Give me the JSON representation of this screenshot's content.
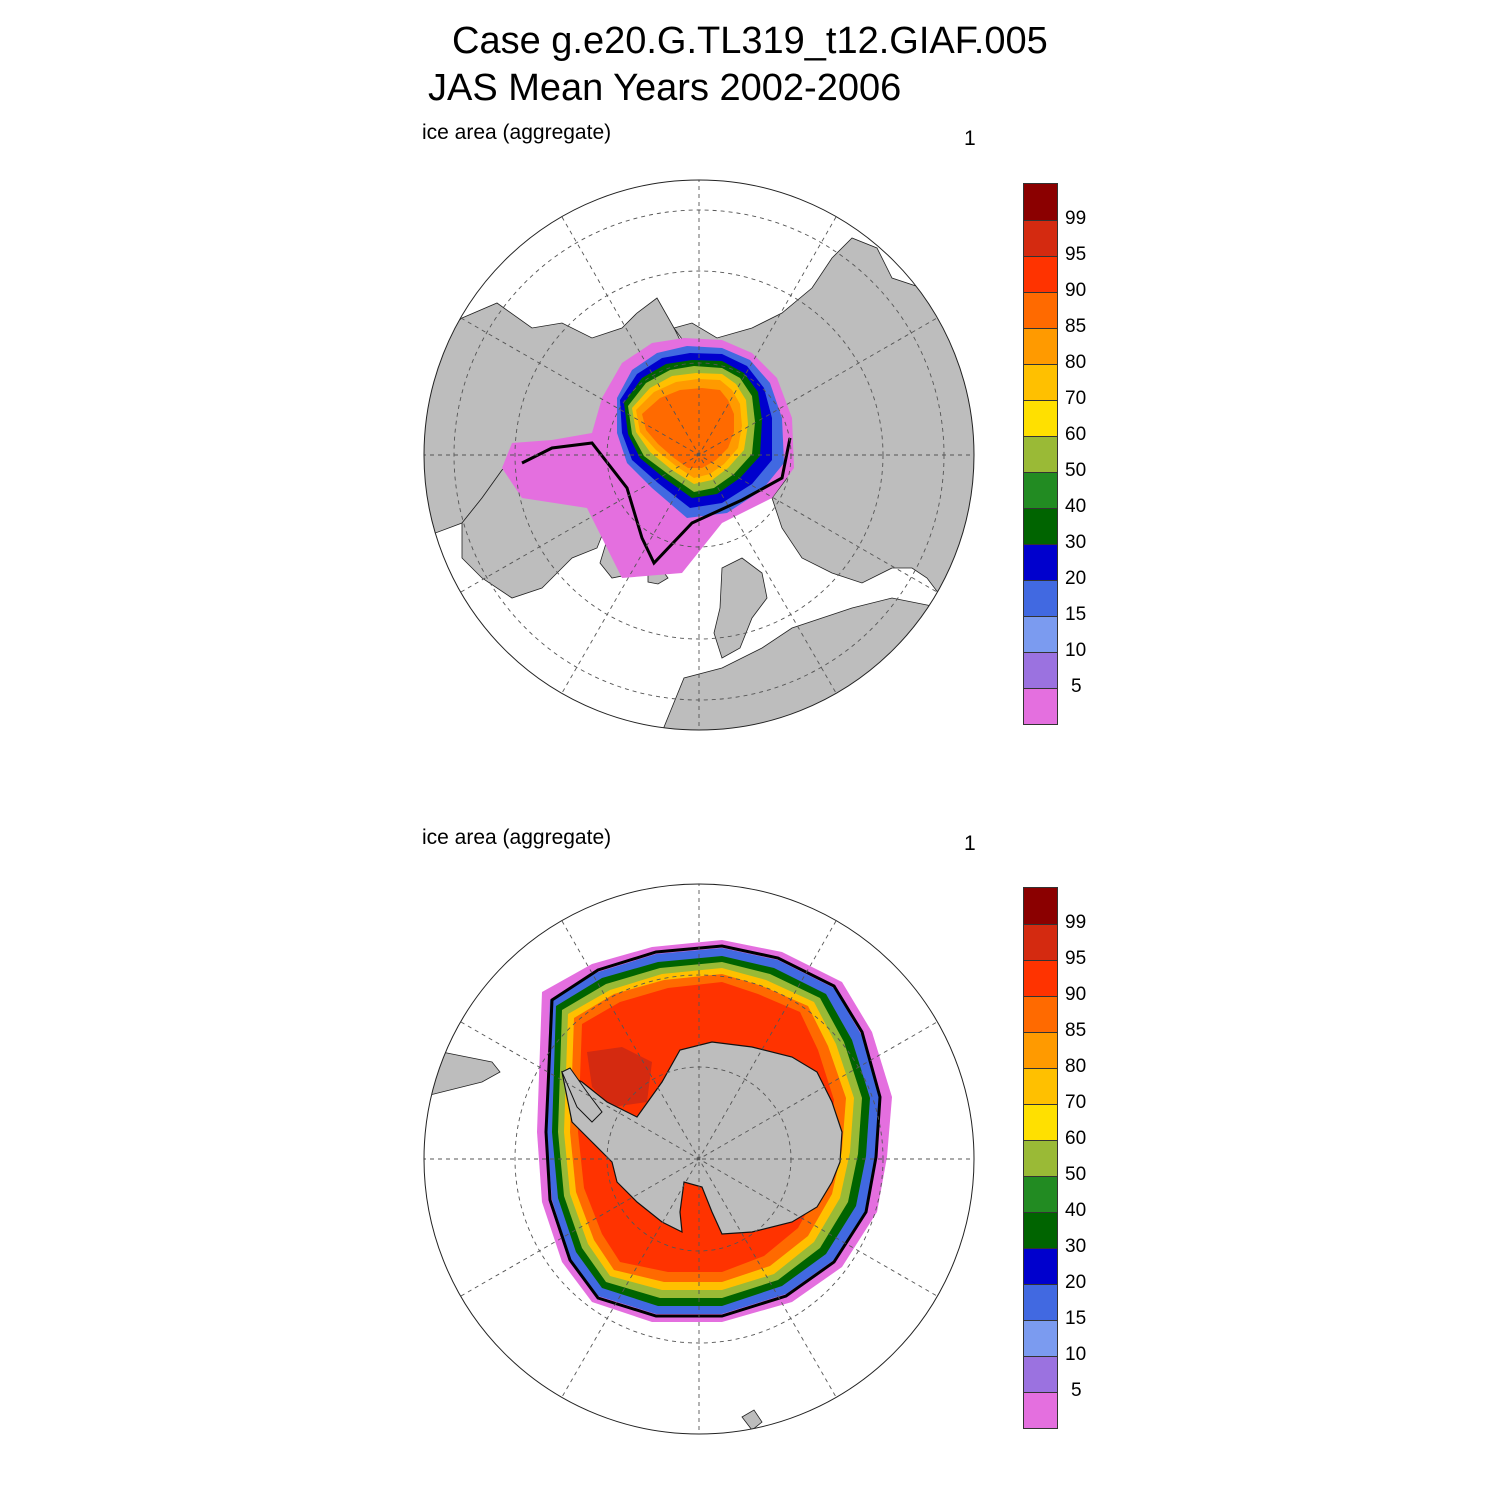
{
  "header": {
    "title_line1": "Case g.e20.G.TL319_t12.GIAF.005",
    "title_line2": "JAS Mean   Years 2002-2006"
  },
  "colors": {
    "land": "#bdbdbd",
    "ocean": "#ffffff",
    "edge_contour": "#000000",
    "grid": "#555555"
  },
  "chart_data": [
    {
      "type": "heatmap",
      "panel": "north",
      "title": "ice area  (aggregate)",
      "panel_number": "1",
      "projection": "north polar stereographic",
      "variable": "ice area (aggregate)",
      "units": "%",
      "colorbar_levels": [
        5,
        10,
        15,
        20,
        30,
        40,
        50,
        60,
        70,
        80,
        85,
        90,
        95,
        99
      ],
      "colorbar_colors": [
        "#e46fdf",
        "#9b72e0",
        "#7b9bf0",
        "#4169e1",
        "#0000cd",
        "#006400",
        "#228b22",
        "#9aba36",
        "#ffe000",
        "#ffc000",
        "#ff9a00",
        "#ff6a00",
        "#ff3300",
        "#d42a10",
        "#8b0000"
      ],
      "grid": true,
      "legend": "right"
    },
    {
      "type": "heatmap",
      "panel": "south",
      "title": "ice area  (aggregate)",
      "panel_number": "1",
      "projection": "south polar stereographic",
      "variable": "ice area (aggregate)",
      "units": "%",
      "colorbar_levels": [
        5,
        10,
        15,
        20,
        30,
        40,
        50,
        60,
        70,
        80,
        85,
        90,
        95,
        99
      ],
      "colorbar_colors": [
        "#e46fdf",
        "#9b72e0",
        "#7b9bf0",
        "#4169e1",
        "#0000cd",
        "#006400",
        "#228b22",
        "#9aba36",
        "#ffe000",
        "#ffc000",
        "#ff9a00",
        "#ff6a00",
        "#ff3300",
        "#d42a10",
        "#8b0000"
      ],
      "grid": true,
      "legend": "right"
    }
  ]
}
